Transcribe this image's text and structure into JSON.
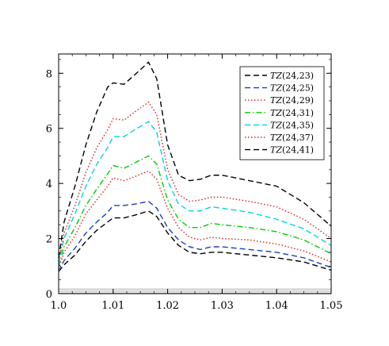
{
  "chart_data": {
    "type": "line",
    "title": "",
    "xlabel": "",
    "ylabel": "",
    "xlim": [
      1.0,
      1.05
    ],
    "ylim": [
      0,
      8.7
    ],
    "xticks": [
      1.0,
      1.01,
      1.02,
      1.03,
      1.04,
      1.05
    ],
    "xtick_labels": [
      "1.0",
      "1.01",
      "1.02",
      "1.03",
      "1.04",
      "1.05"
    ],
    "yticks": [
      0,
      2,
      4,
      6,
      8
    ],
    "ytick_labels": [
      "0",
      "2",
      "4",
      "6",
      "8"
    ],
    "grid": false,
    "legend_position": "top-right",
    "series": [
      {
        "name": "TZ(24,23)",
        "color": "#000000",
        "dash": "dashed",
        "x": [
          1.0,
          1.001,
          1.003,
          1.005,
          1.007,
          1.009,
          1.01,
          1.012,
          1.014,
          1.0165,
          1.018,
          1.02,
          1.022,
          1.024,
          1.026,
          1.028,
          1.03,
          1.035,
          1.04,
          1.045,
          1.05
        ],
        "y": [
          0.8,
          1.05,
          1.4,
          1.9,
          2.3,
          2.6,
          2.75,
          2.75,
          2.85,
          3.0,
          2.8,
          2.2,
          1.75,
          1.5,
          1.45,
          1.5,
          1.5,
          1.4,
          1.3,
          1.15,
          0.85
        ]
      },
      {
        "name": "TZ(24,25)",
        "color": "#1f3fbf",
        "dash": "dashed",
        "x": [
          1.0,
          1.001,
          1.003,
          1.005,
          1.007,
          1.009,
          1.01,
          1.012,
          1.014,
          1.0165,
          1.018,
          1.02,
          1.022,
          1.024,
          1.026,
          1.028,
          1.03,
          1.035,
          1.04,
          1.045,
          1.05
        ],
        "y": [
          0.8,
          1.2,
          1.65,
          2.2,
          2.6,
          2.95,
          3.2,
          3.2,
          3.25,
          3.35,
          3.1,
          2.4,
          1.95,
          1.7,
          1.6,
          1.7,
          1.7,
          1.6,
          1.5,
          1.3,
          0.95
        ]
      },
      {
        "name": "TZ(24,29)",
        "color": "#e02020",
        "dash": "dotted",
        "x": [
          1.0,
          1.001,
          1.003,
          1.005,
          1.007,
          1.009,
          1.01,
          1.012,
          1.014,
          1.0165,
          1.018,
          1.02,
          1.022,
          1.024,
          1.026,
          1.028,
          1.03,
          1.035,
          1.04,
          1.045,
          1.05
        ],
        "y": [
          0.9,
          1.5,
          2.1,
          2.9,
          3.4,
          3.9,
          4.2,
          4.1,
          4.25,
          4.45,
          4.15,
          3.1,
          2.4,
          2.05,
          1.95,
          2.05,
          2.0,
          1.95,
          1.8,
          1.55,
          1.15
        ]
      },
      {
        "name": "TZ(24,31)",
        "color": "#00cc00",
        "dash": "dashdot",
        "x": [
          1.0,
          1.001,
          1.003,
          1.005,
          1.007,
          1.009,
          1.01,
          1.012,
          1.014,
          1.0165,
          1.018,
          1.02,
          1.022,
          1.024,
          1.026,
          1.028,
          1.03,
          1.035,
          1.04,
          1.045,
          1.05
        ],
        "y": [
          1.0,
          1.7,
          2.4,
          3.2,
          3.8,
          4.35,
          4.65,
          4.55,
          4.75,
          5.0,
          4.7,
          3.4,
          2.7,
          2.4,
          2.4,
          2.55,
          2.5,
          2.4,
          2.25,
          1.95,
          1.45
        ]
      },
      {
        "name": "TZ(24,35)",
        "color": "#00d4e8",
        "dash": "dashed",
        "x": [
          1.0,
          1.001,
          1.003,
          1.005,
          1.007,
          1.009,
          1.01,
          1.012,
          1.014,
          1.0165,
          1.018,
          1.02,
          1.022,
          1.024,
          1.026,
          1.028,
          1.03,
          1.035,
          1.04,
          1.045,
          1.05
        ],
        "y": [
          1.1,
          2.0,
          2.9,
          3.9,
          4.7,
          5.3,
          5.7,
          5.7,
          5.95,
          6.25,
          5.85,
          4.1,
          3.25,
          3.0,
          3.0,
          3.15,
          3.1,
          2.95,
          2.7,
          2.35,
          1.75
        ]
      },
      {
        "name": "TZ(24,37)",
        "color": "#e02020",
        "dash": "dotted",
        "x": [
          1.0,
          1.001,
          1.003,
          1.005,
          1.007,
          1.009,
          1.01,
          1.012,
          1.014,
          1.0165,
          1.018,
          1.02,
          1.022,
          1.024,
          1.026,
          1.028,
          1.03,
          1.035,
          1.04,
          1.045,
          1.05
        ],
        "y": [
          1.2,
          2.2,
          3.2,
          4.4,
          5.3,
          5.95,
          6.35,
          6.3,
          6.6,
          6.95,
          6.5,
          4.5,
          3.6,
          3.35,
          3.4,
          3.5,
          3.5,
          3.35,
          3.15,
          2.7,
          2.0
        ]
      },
      {
        "name": "TZ(24,41)",
        "color": "#000000",
        "dash": "dashed",
        "x": [
          1.0,
          1.001,
          1.003,
          1.005,
          1.007,
          1.009,
          1.01,
          1.012,
          1.014,
          1.0165,
          1.018,
          1.02,
          1.022,
          1.024,
          1.026,
          1.028,
          1.03,
          1.035,
          1.04,
          1.045,
          1.05
        ],
        "y": [
          1.3,
          2.6,
          3.9,
          5.4,
          6.6,
          7.5,
          7.65,
          7.6,
          7.95,
          8.4,
          7.8,
          5.4,
          4.3,
          4.1,
          4.15,
          4.3,
          4.3,
          4.1,
          3.9,
          3.3,
          2.45
        ]
      }
    ]
  }
}
